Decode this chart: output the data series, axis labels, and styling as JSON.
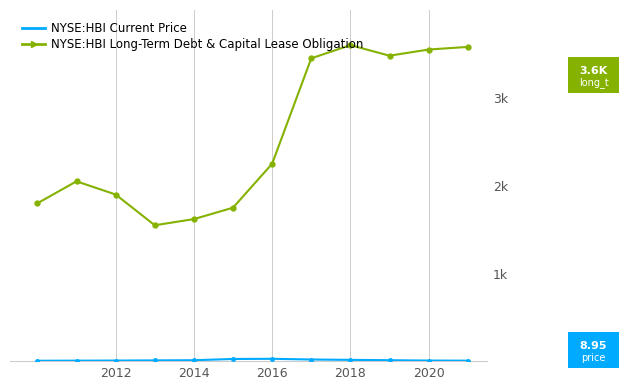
{
  "years_debt": [
    2010,
    2011,
    2012,
    2013,
    2014,
    2015,
    2016,
    2017,
    2018,
    2019,
    2020,
    2021
  ],
  "debt_values": [
    1800,
    2050,
    1900,
    1550,
    1620,
    1750,
    2250,
    3450,
    3600,
    3480,
    3550,
    3580
  ],
  "years_price": [
    2010,
    2011,
    2012,
    2013,
    2014,
    2015,
    2016,
    2017,
    2018,
    2019,
    2020,
    2021
  ],
  "price_values": [
    8,
    9,
    10,
    12,
    14,
    28,
    30,
    22,
    18,
    14,
    10,
    8.95
  ],
  "debt_color": "#85b200",
  "price_color": "#00aaff",
  "bg_color": "#ffffff",
  "grid_color": "#cccccc",
  "legend_price": "NYSE:HBI Current Price",
  "legend_debt": "NYSE:HBI Long-Term Debt & Capital Lease Obligation",
  "ylim": [
    0,
    4000
  ],
  "yticks": [
    0,
    1000,
    2000,
    3000,
    4000
  ],
  "ytick_labels": [
    "",
    "1k",
    "2k",
    "3k",
    ""
  ],
  "xlim": [
    2009.3,
    2021.5
  ],
  "xticks": [
    2012,
    2014,
    2016,
    2018,
    2020
  ],
  "current_debt_label": "3.6K\nlong_t",
  "current_price_label": "8.95\nprice",
  "debt_box_color": "#85b200",
  "price_box_color": "#00aaff"
}
